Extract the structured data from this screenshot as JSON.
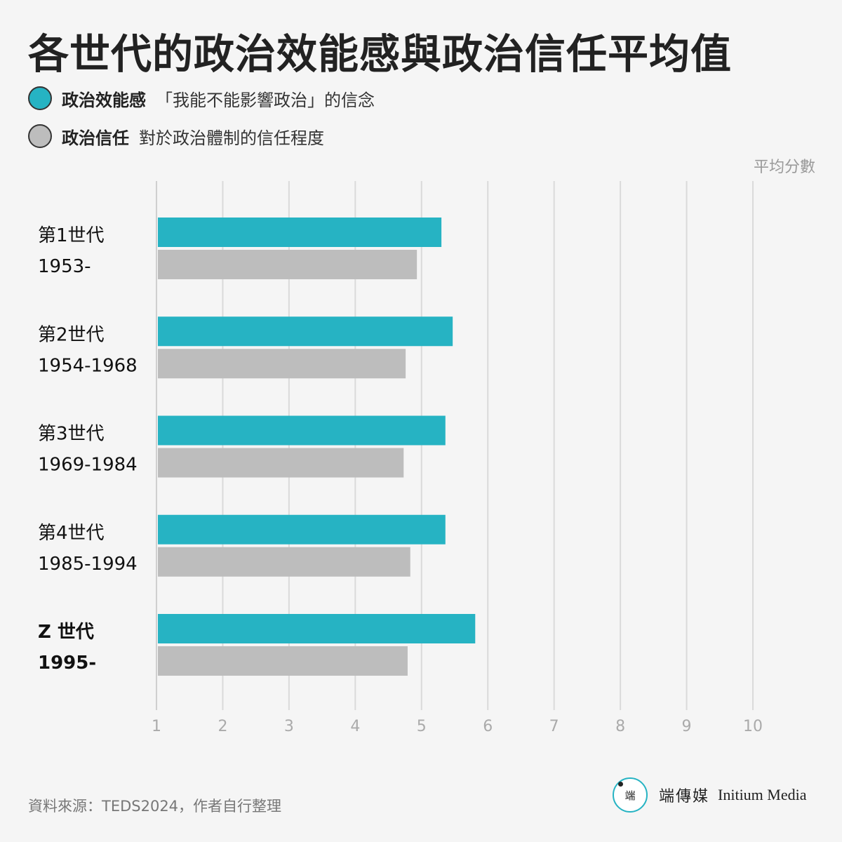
{
  "title": "各世代的政治效能感與政治信任平均值",
  "legend": [
    {
      "name": "政治效能感",
      "desc": "「我能不能影響政治」的信念",
      "color": "#26b3c3"
    },
    {
      "name": "政治信任",
      "desc": "對於政治體制的信任程度",
      "color": "#bdbdbd"
    }
  ],
  "unit_label": "平均分數",
  "source": "資料來源：TEDS2024，作者自行整理",
  "brand": {
    "logo_text": "端",
    "name": "端傳媒",
    "name_en": "Initium Media"
  },
  "chart_data": {
    "type": "bar",
    "orientation": "horizontal",
    "categories": [
      {
        "name": "第1世代",
        "years": "1953-",
        "bold": false
      },
      {
        "name": "第2世代",
        "years": "1954-1968",
        "bold": false
      },
      {
        "name": "第3世代",
        "years": "1969-1984",
        "bold": false
      },
      {
        "name": "第4世代",
        "years": "1985-1994",
        "bold": false
      },
      {
        "name": "Z 世代",
        "years": "1995-",
        "bold": true
      }
    ],
    "series": [
      {
        "name": "政治效能感",
        "color": "#26b3c3",
        "values": [
          5.3,
          5.47,
          5.36,
          5.36,
          5.81
        ]
      },
      {
        "name": "政治信任",
        "color": "#bdbdbd",
        "values": [
          4.93,
          4.76,
          4.73,
          4.83,
          4.79
        ]
      }
    ],
    "xlim": [
      1,
      10
    ],
    "xticks": [
      1,
      2,
      3,
      4,
      5,
      6,
      7,
      8,
      9,
      10
    ],
    "xlabel": "平均分數",
    "grid": true
  }
}
